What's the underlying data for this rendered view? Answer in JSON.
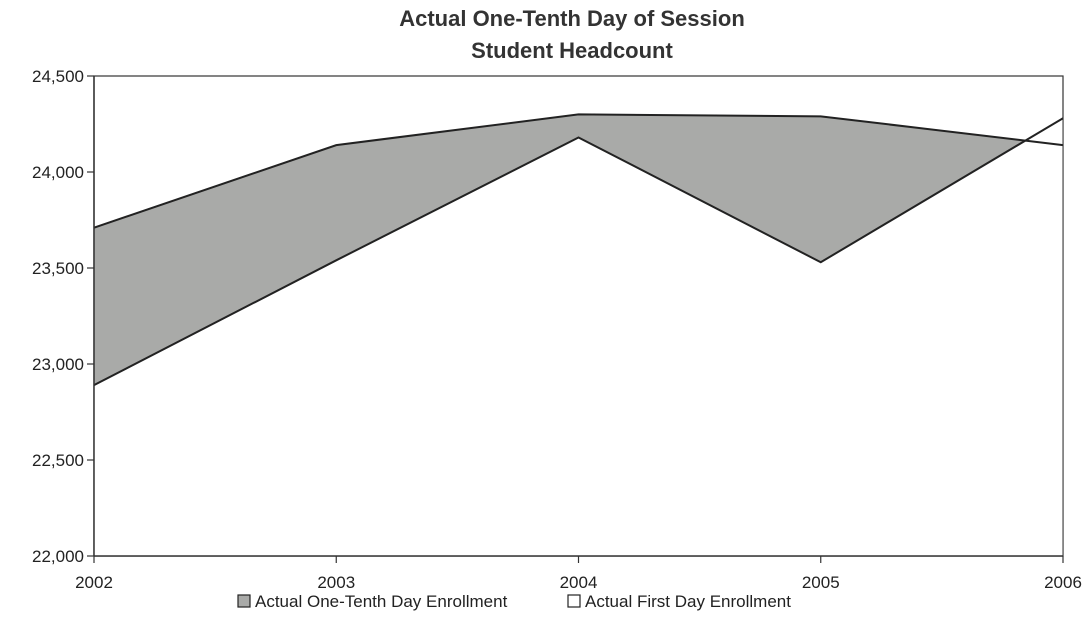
{
  "colors": {
    "one_tenth_fill": "#a9aaa8",
    "first_day_fill": "#ffffff",
    "line": "#222222",
    "axis": "#333333"
  },
  "chart_data": {
    "type": "area",
    "title": "Actual One-Tenth Day of Session",
    "subtitle": "Student Headcount",
    "x": [
      "2002",
      "2003",
      "2004",
      "2005",
      "2006"
    ],
    "ylim": [
      22000,
      24500
    ],
    "ytick_labels": [
      "24,500",
      "24,000",
      "23,500",
      "23,000",
      "22,500",
      "22,000"
    ],
    "yticks": [
      24500,
      24000,
      23500,
      23000,
      22500,
      22000
    ],
    "grid": false,
    "legend_position": "bottom",
    "series": [
      {
        "name": "Actual One-Tenth Day Enrollment",
        "values": [
          23710,
          24140,
          24300,
          24290,
          24140
        ],
        "color": "#a9aaa8"
      },
      {
        "name": "Actual First Day Enrollment",
        "values": [
          22890,
          23540,
          24180,
          23530,
          24280
        ],
        "color": "#ffffff"
      }
    ]
  }
}
